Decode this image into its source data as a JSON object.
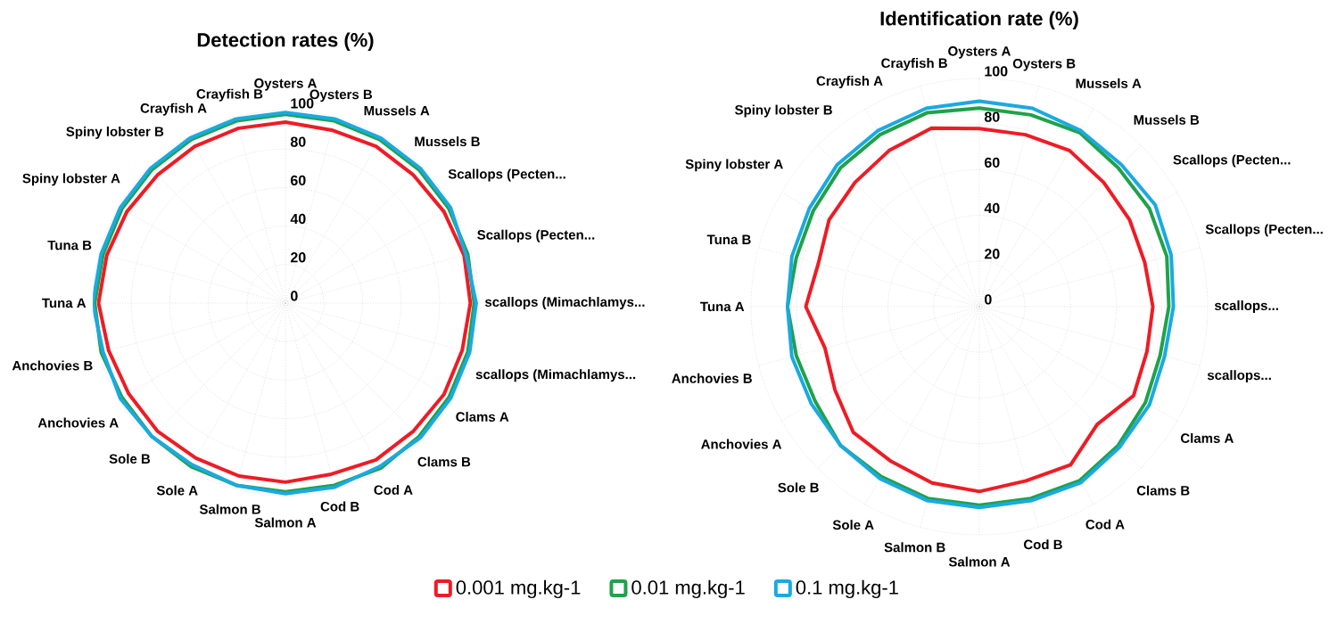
{
  "chart_data": [
    {
      "type": "radar",
      "title": "Detection rates (%)",
      "categories": [
        "Oysters A",
        "Oysters B",
        "Mussels A",
        "Mussels B",
        "Scallops (Pecten...",
        "Scallops (Pecten...",
        "scallops (Mimachlamys...",
        "scallops (Mimachlamys...",
        "Clams A",
        "Clams B",
        "Cod A",
        "Cod B",
        "Salmon A",
        "Salmon B",
        "Sole A",
        "Sole B",
        "Anchovies A",
        "Anchovies B",
        "Tuna A",
        "Tuna B",
        "Spiny lobster A",
        "Spiny lobster B",
        "Crayfish A",
        "Crayfish B"
      ],
      "series": [
        {
          "name": "0.001 mg.kg-1",
          "color": "#ee1c25",
          "values": [
            94,
            93,
            94,
            94,
            95,
            96,
            96,
            95,
            95,
            94,
            94,
            92,
            93,
            93,
            93,
            94,
            94,
            95,
            97,
            96,
            95,
            94,
            94,
            94
          ]
        },
        {
          "name": "0.01 mg.kg-1",
          "color": "#1fa24a",
          "values": [
            98,
            98,
            98,
            98,
            98,
            98,
            98,
            98,
            98,
            98,
            99,
            98,
            98,
            98,
            98,
            98,
            98,
            99,
            99,
            98,
            98,
            98,
            98,
            98
          ]
        },
        {
          "name": "0.1 mg.kg-1",
          "color": "#1ba9e1",
          "values": [
            99,
            99,
            99,
            99,
            99,
            97,
            99,
            99,
            99,
            99,
            98,
            99,
            99,
            98,
            97,
            98,
            99,
            98,
            100,
            99,
            99,
            99,
            99,
            99
          ]
        }
      ],
      "ylim": [
        0,
        100
      ],
      "yticks": [
        0,
        20,
        40,
        60,
        80,
        100
      ],
      "grid": true,
      "legend": "bottom",
      "marker": "none",
      "line_style": "solid"
    },
    {
      "type": "radar",
      "title": "Identification rate (%)",
      "categories": [
        "Oysters A",
        "Oysters B",
        "Mussels A",
        "Mussels B",
        "Scallops (Pecten...",
        "Scallops (Pecten...",
        "scallops...",
        "scallops...",
        "Clams A",
        "Clams B",
        "Cod A",
        "Cod B",
        "Salmon A",
        "Salmon B",
        "Sole A",
        "Sole B",
        "Anchovies A",
        "Anchovies B",
        "Tuna A",
        "Tuna B",
        "Spiny lobster A",
        "Spiny lobster B",
        "Crayfish A",
        "Crayfish B"
      ],
      "series": [
        {
          "color": "#ee1c25",
          "values": [
            78,
            78,
            79,
            77,
            76,
            75,
            76,
            76,
            78,
            73,
            80,
            79,
            81,
            80,
            78,
            78,
            73,
            70,
            76,
            73,
            76,
            77,
            79,
            81
          ]
        },
        {
          "color": "#1fa24a",
          "values": [
            87,
            87,
            88,
            86,
            86,
            85,
            83,
            82,
            84,
            86,
            88,
            87,
            87,
            87,
            86,
            86,
            83,
            83,
            84,
            83,
            84,
            86,
            87,
            88
          ]
        },
        {
          "color": "#1ba9e1",
          "values": [
            90,
            90,
            89,
            88,
            89,
            87,
            85,
            84,
            86,
            87,
            89,
            88,
            88,
            88,
            87,
            86,
            85,
            85,
            84,
            85,
            86,
            88,
            89,
            90
          ]
        }
      ],
      "ylim": [
        0,
        100
      ],
      "yticks": [
        0,
        20,
        40,
        60,
        80,
        100
      ],
      "grid": true,
      "marker": "none",
      "line_style": "solid"
    }
  ]
}
